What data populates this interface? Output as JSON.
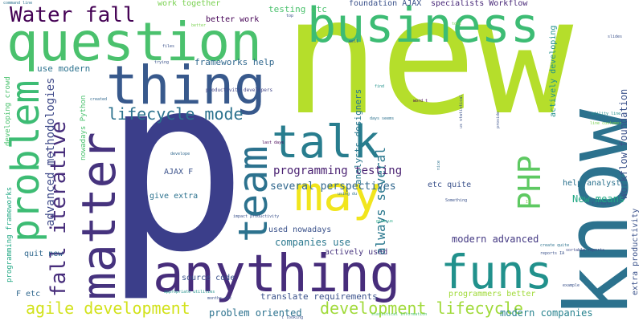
{
  "colors": {
    "background": "#ffffff",
    "palette": [
      "#440154",
      "#3b528b",
      "#21918c",
      "#5ec962",
      "#fde725"
    ]
  },
  "words": [
    {
      "text": "new",
      "color": "#b5de2b"
    },
    {
      "text": "p",
      "color": "#3b3e8a"
    },
    {
      "text": "know",
      "color": "#2c728e"
    },
    {
      "text": "question",
      "color": "#4ac16d"
    },
    {
      "text": "business",
      "color": "#3dbc74"
    },
    {
      "text": "thing",
      "color": "#38598c"
    },
    {
      "text": "matter",
      "color": "#46337e"
    },
    {
      "text": "problem",
      "color": "#3dbc74"
    },
    {
      "text": "anything",
      "color": "#472d7b"
    },
    {
      "text": "funs",
      "color": "#21918c"
    },
    {
      "text": "team",
      "color": "#2c728e"
    },
    {
      "text": "talk",
      "color": "#287d8e"
    },
    {
      "text": "may",
      "color": "#f1e51d"
    },
    {
      "text": "PHP",
      "color": "#5ec962"
    },
    {
      "text": "Water fall",
      "color": "#440154"
    },
    {
      "text": "fall iterative",
      "color": "#472d7b"
    },
    {
      "text": "lifecycle mode",
      "color": "#2c728e"
    },
    {
      "text": "agile development",
      "color": "#d2e21b"
    },
    {
      "text": "development lifecycle",
      "color": "#a0da39"
    },
    {
      "text": "advanced methodologies",
      "color": "#3e4989"
    },
    {
      "text": "always several",
      "color": "#2a788e"
    },
    {
      "text": "Workflow foundation",
      "color": "#3b528b"
    },
    {
      "text": "several perspectives",
      "color": "#31688e"
    },
    {
      "text": "programming testing",
      "color": "#481f70"
    },
    {
      "text": "modern advanced",
      "color": "#443983"
    },
    {
      "text": "modern companies",
      "color": "#26828e"
    },
    {
      "text": "companies use",
      "color": "#2a788e"
    },
    {
      "text": "New means",
      "color": "#22a884"
    },
    {
      "text": "analysts designers",
      "color": "#2a788e"
    },
    {
      "text": "use modern",
      "color": "#2c728e"
    },
    {
      "text": "frameworks help",
      "color": "#31688e"
    },
    {
      "text": "problem oriented",
      "color": "#2c728e"
    },
    {
      "text": "translate requirements",
      "color": "#3b528b"
    },
    {
      "text": "specialists Workflow",
      "color": "#482878"
    },
    {
      "text": "foundation AJAX",
      "color": "#3b528b"
    },
    {
      "text": "actively developing",
      "color": "#21918c"
    },
    {
      "text": "extra productivity",
      "color": "#3b528b"
    },
    {
      "text": "testing etc",
      "color": "#4ac16d"
    },
    {
      "text": "work together",
      "color": "#7ad151"
    },
    {
      "text": "better work",
      "color": "#440154"
    },
    {
      "text": "used nowadays",
      "color": "#3b528b"
    },
    {
      "text": "source code",
      "color": "#3b528b"
    },
    {
      "text": "programmers better",
      "color": "#a0da39"
    },
    {
      "text": "actively used",
      "color": "#46337e"
    },
    {
      "text": "etc quite",
      "color": "#3b528b"
    },
    {
      "text": "help analysts",
      "color": "#2c728e"
    },
    {
      "text": "AJAX F",
      "color": "#3b528b"
    },
    {
      "text": "give extra",
      "color": "#2c728e"
    },
    {
      "text": "quit new",
      "color": "#31688e"
    },
    {
      "text": "F etc",
      "color": "#31688e"
    },
    {
      "text": "developing crowd",
      "color": "#4ac16d"
    },
    {
      "text": "programming frameworks",
      "color": "#22a884"
    },
    {
      "text": "nowadays Python",
      "color": "#4ac16d"
    },
    {
      "text": "productivity developers",
      "color": "#414487"
    },
    {
      "text": "trying",
      "color": "#3b528b"
    },
    {
      "text": "files",
      "color": "#3b528b"
    },
    {
      "text": "created",
      "color": "#31688e"
    },
    {
      "text": "command line",
      "color": "#2c728e"
    },
    {
      "text": "utility line",
      "color": "#21918c"
    },
    {
      "text": "line customer",
      "color": "#7ad151"
    },
    {
      "text": "sortable reports",
      "color": "#3e4989"
    },
    {
      "text": "reports IA",
      "color": "#3b528b"
    },
    {
      "text": "create quite",
      "color": "#2c728e"
    },
    {
      "text": "example",
      "color": "#3b528b"
    },
    {
      "text": "us statistical",
      "color": "#3b528b"
    },
    {
      "text": "find",
      "color": "#21918c"
    },
    {
      "text": "word t",
      "color": "#440154"
    },
    {
      "text": "days seems",
      "color": "#2c728e"
    },
    {
      "text": "last days",
      "color": "#440154"
    },
    {
      "text": "develope",
      "color": "#31688e"
    },
    {
      "text": "nice",
      "color": "#2c728e"
    },
    {
      "text": "using du",
      "color": "#2c728e"
    },
    {
      "text": "Something",
      "color": "#3b528b"
    },
    {
      "text": "impact productivity",
      "color": "#3b528b"
    },
    {
      "text": "months etc",
      "color": "#3b528b"
    },
    {
      "text": "appropriate utilities",
      "color": "#21918c"
    },
    {
      "text": "t looking",
      "color": "#3b528b"
    },
    {
      "text": "give us",
      "color": "#22a884"
    },
    {
      "text": "slides",
      "color": "#3b528b"
    },
    {
      "text": "top",
      "color": "#3b528b"
    },
    {
      "text": "well",
      "color": "#3b528b"
    },
    {
      "text": "Ik",
      "color": "#7ad151"
    },
    {
      "text": "t create",
      "color": "#3b528b"
    },
    {
      "text": "statistical information",
      "color": "#4ac16d"
    },
    {
      "text": "provide",
      "color": "#3b528b"
    },
    {
      "text": "better",
      "color": "#7ad151"
    },
    {
      "text": "tool",
      "color": "#7ad151"
    }
  ]
}
